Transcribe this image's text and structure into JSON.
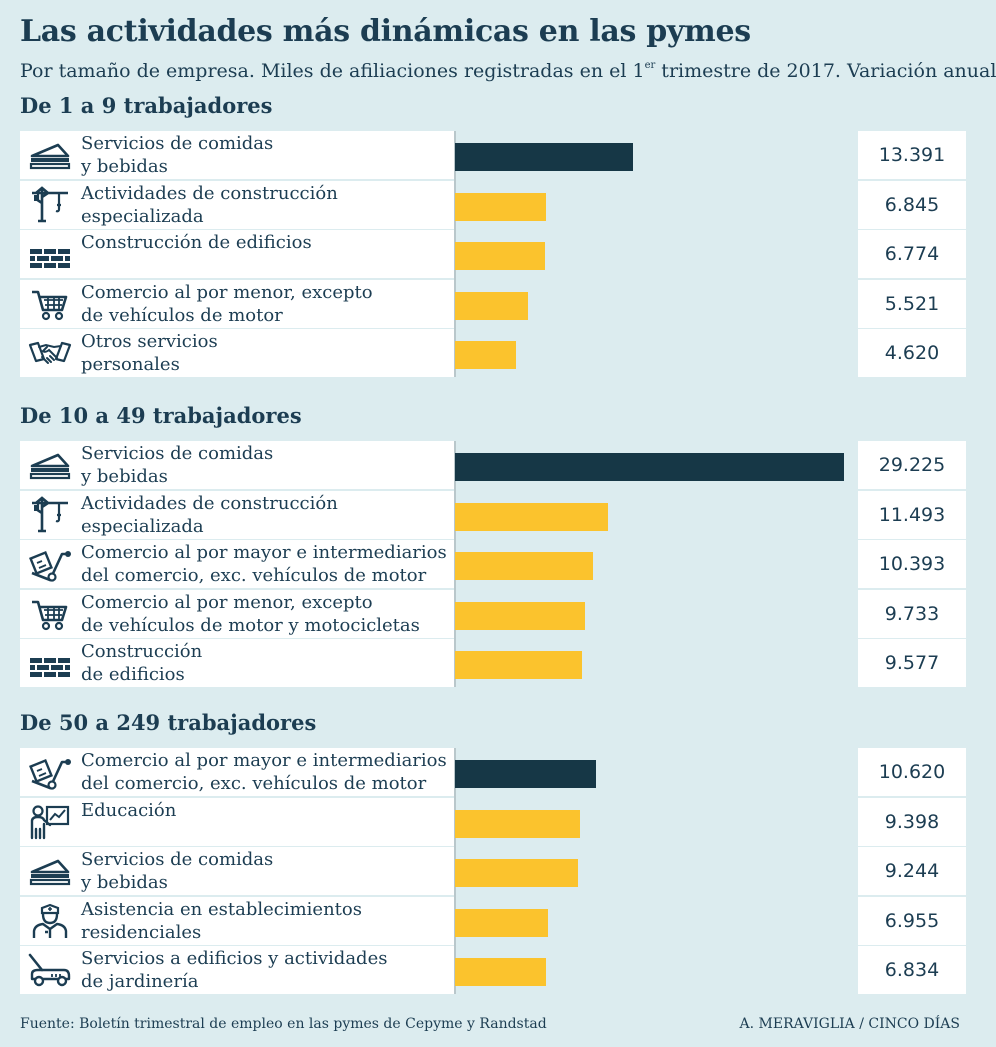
{
  "header": {
    "title": "Las actividades más dinámicas en las pymes",
    "subtitle_before": "Por tamaño de empresa. Miles de afiliaciones registradas en el 1",
    "subtitle_sup": "er",
    "subtitle_after": " trimestre de 2017. Variación anual"
  },
  "footer": {
    "source": "Fuente: Boletín trimestral de empleo en las pymes de Cepyme y Randstad",
    "credit": "A. MERAVIGLIA / CINCO DÍAS"
  },
  "colors": {
    "background": "#dcecef",
    "top_bar": "#163746",
    "other_bars": "#fbc32d",
    "text": "#1c3d52"
  },
  "chart_data": {
    "type": "bar",
    "orientation": "horizontal",
    "title": "Las actividades más dinámicas en las pymes",
    "subtitle": "Por tamaño de empresa. Miles de afiliaciones registradas en el 1er trimestre de 2017. Variación anual",
    "xlim": [
      0,
      29225
    ],
    "units": "afiliaciones (variación anual)",
    "groups": [
      {
        "name": "De 1 a 9 trabajadores",
        "items": [
          {
            "label": "Servicios de comidas\ny bebidas",
            "value": 13391,
            "display": "13.391",
            "icon": "sandwich-icon"
          },
          {
            "label": "Actividades de construcción\nespecializada",
            "value": 6845,
            "display": "6.845",
            "icon": "crane-icon"
          },
          {
            "label": "Construcción de edificios",
            "value": 6774,
            "display": "6.774",
            "icon": "bricks-icon"
          },
          {
            "label": "Comercio al por menor, excepto\nde vehículos de motor",
            "value": 5521,
            "display": "5.521",
            "icon": "cart-icon"
          },
          {
            "label": "Otros servicios\npersonales",
            "value": 4620,
            "display": "4.620",
            "icon": "handshake-icon"
          }
        ]
      },
      {
        "name": "De 10 a 49 trabajadores",
        "items": [
          {
            "label": "Servicios de comidas\ny bebidas",
            "value": 29225,
            "display": "29.225",
            "icon": "sandwich-icon"
          },
          {
            "label": "Actividades de construcción\nespecializada",
            "value": 11493,
            "display": "11.493",
            "icon": "crane-icon"
          },
          {
            "label": "Comercio al por mayor e intermediarios\ndel comercio, exc. vehículos de motor",
            "value": 10393,
            "display": "10.393",
            "icon": "hand-truck-icon"
          },
          {
            "label": "Comercio al por menor, excepto\nde vehículos de motor y motocicletas",
            "value": 9733,
            "display": "9.733",
            "icon": "cart-icon"
          },
          {
            "label": "Construcción\nde edificios",
            "value": 9577,
            "display": "9.577",
            "icon": "bricks-icon"
          }
        ]
      },
      {
        "name": "De 50 a 249 trabajadores",
        "items": [
          {
            "label": "Comercio al por mayor e intermediarios\ndel comercio, exc. vehículos de motor",
            "value": 10620,
            "display": "10.620",
            "icon": "hand-truck-icon"
          },
          {
            "label": "Educación",
            "value": 9398,
            "display": "9.398",
            "icon": "teacher-icon"
          },
          {
            "label": "Servicios de comidas\ny bebidas",
            "value": 9244,
            "display": "9.244",
            "icon": "sandwich-icon"
          },
          {
            "label": "Asistencia en establecimientos\nresidenciales",
            "value": 6955,
            "display": "6.955",
            "icon": "nurse-icon"
          },
          {
            "label": "Servicios a edificios y actividades\nde jardinería",
            "value": 6834,
            "display": "6.834",
            "icon": "lawnmower-icon"
          }
        ]
      }
    ]
  }
}
